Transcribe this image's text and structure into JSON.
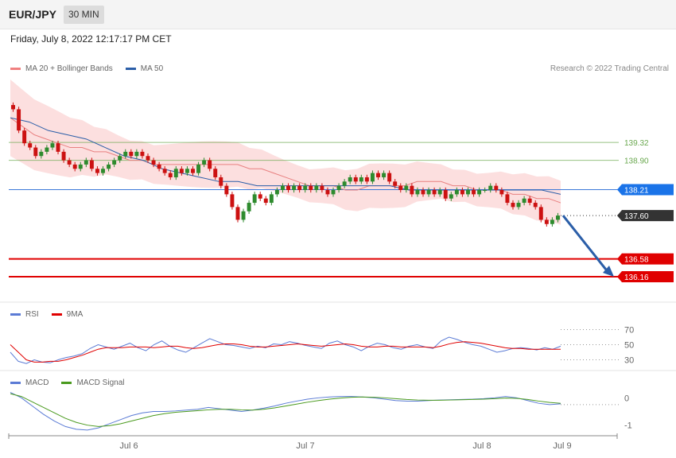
{
  "header": {
    "symbol": "EUR/JPY",
    "timeframe": "30 MIN"
  },
  "datetime": "Friday, July 8, 2022 12:17:17 PM CET",
  "credit": "Research © 2022 Trading Central",
  "legends": {
    "price": [
      {
        "label": "MA 20 + Bollinger Bands",
        "color": "#f08080"
      },
      {
        "label": "MA 50",
        "color": "#2b5ea8"
      }
    ],
    "rsi": [
      {
        "label": "RSI",
        "color": "#5b7bd5"
      },
      {
        "label": "9MA",
        "color": "#e00000"
      }
    ],
    "macd": [
      {
        "label": "MACD",
        "color": "#5b7bd5"
      },
      {
        "label": "MACD Signal",
        "color": "#4a9a1e"
      }
    ]
  },
  "chart_data": [
    {
      "type": "candlestick",
      "title": "EUR/JPY 30 MIN",
      "x_ticks": [
        "Jul 6",
        "Jul 7",
        "Jul 8",
        "Jul 9"
      ],
      "ylim": [
        135.6,
        140.8
      ],
      "last_price": 137.6,
      "levels": [
        {
          "value": 139.32,
          "label": "139.32",
          "color": "#6aa84f",
          "kind": "resistance"
        },
        {
          "value": 138.9,
          "label": "138.90",
          "color": "#6aa84f",
          "kind": "resistance"
        },
        {
          "value": 138.21,
          "label": "138.21",
          "color": "#3c78d8",
          "kind": "pivot"
        },
        {
          "value": 137.6,
          "label": "137.60",
          "color": "#333333",
          "kind": "last"
        },
        {
          "value": 136.58,
          "label": "136.58",
          "color": "#e00000",
          "kind": "support"
        },
        {
          "value": 136.16,
          "label": "136.16",
          "color": "#e00000",
          "kind": "support"
        }
      ],
      "close": [
        140.1,
        139.6,
        139.3,
        139.2,
        139.0,
        139.1,
        139.2,
        139.3,
        139.1,
        138.9,
        138.8,
        138.7,
        138.8,
        138.9,
        138.7,
        138.6,
        138.7,
        138.8,
        138.9,
        139.0,
        139.1,
        139.0,
        139.1,
        139.0,
        138.9,
        138.8,
        138.7,
        138.6,
        138.5,
        138.7,
        138.6,
        138.7,
        138.6,
        138.8,
        138.9,
        138.7,
        138.5,
        138.3,
        138.1,
        137.8,
        137.5,
        137.7,
        137.9,
        138.1,
        138.0,
        137.9,
        138.1,
        138.2,
        138.3,
        138.2,
        138.3,
        138.2,
        138.3,
        138.2,
        138.3,
        138.2,
        138.1,
        138.2,
        138.3,
        138.4,
        138.5,
        138.4,
        138.5,
        138.4,
        138.6,
        138.5,
        138.6,
        138.4,
        138.3,
        138.2,
        138.3,
        138.1,
        138.2,
        138.1,
        138.2,
        138.1,
        138.2,
        138.0,
        138.1,
        138.2,
        138.1,
        138.2,
        138.1,
        138.2,
        138.2,
        138.3,
        138.2,
        138.1,
        137.9,
        137.8,
        137.9,
        138.0,
        137.9,
        137.8,
        137.5,
        137.4,
        137.5,
        137.6
      ],
      "ma20": [
        139.9,
        139.7,
        139.5,
        139.4,
        139.3,
        139.2,
        139.2,
        139.1,
        139.1,
        139.0,
        138.9,
        138.9,
        138.8,
        138.8,
        138.8,
        138.8,
        138.8,
        138.8,
        138.8,
        138.8,
        138.7,
        138.7,
        138.6,
        138.5,
        138.4,
        138.3,
        138.3,
        138.3,
        138.2,
        138.2,
        138.3,
        138.3,
        138.3,
        138.3,
        138.4,
        138.4,
        138.4,
        138.3,
        138.3,
        138.2,
        138.2,
        138.2,
        138.1,
        138.1,
        138.0,
        138.0,
        137.9
      ],
      "ma50": [
        139.9,
        139.8,
        139.6,
        139.5,
        139.4,
        139.2,
        139.0,
        138.9,
        138.7,
        138.6,
        138.5,
        138.4,
        138.4,
        138.3,
        138.3,
        138.3,
        138.3,
        138.3,
        138.3,
        138.3,
        138.3,
        138.2,
        138.2,
        138.2,
        138.2,
        138.2,
        138.2,
        138.2,
        138.2,
        138.1
      ],
      "target_arrow": {
        "from": 137.6,
        "to": 136.16
      }
    },
    {
      "type": "line",
      "title": "RSI",
      "ylim": [
        20,
        80
      ],
      "y_ticks": [
        70,
        50,
        30
      ],
      "series": [
        {
          "name": "RSI",
          "color": "#5b7bd5",
          "values": [
            40,
            28,
            25,
            30,
            27,
            26,
            30,
            33,
            35,
            38,
            45,
            50,
            47,
            44,
            48,
            52,
            46,
            42,
            50,
            55,
            48,
            43,
            40,
            46,
            52,
            58,
            54,
            50,
            49,
            47,
            45,
            48,
            46,
            51,
            50,
            54,
            52,
            49,
            47,
            45,
            52,
            55,
            50,
            47,
            42,
            48,
            52,
            50,
            46,
            44,
            48,
            50,
            47,
            45,
            55,
            60,
            57,
            53,
            50,
            48,
            44,
            40,
            42,
            45,
            46,
            45,
            43,
            46,
            44,
            48
          ]
        },
        {
          "name": "9MA",
          "color": "#e00000",
          "values": [
            50,
            40,
            30,
            27,
            27,
            28,
            28,
            30,
            33,
            36,
            40,
            44,
            46,
            46,
            46,
            47,
            47,
            47,
            46,
            47,
            48,
            48,
            46,
            45,
            46,
            48,
            50,
            51,
            51,
            50,
            48,
            47,
            47,
            48,
            49,
            50,
            51,
            50,
            49,
            48,
            49,
            50,
            51,
            50,
            48,
            47,
            47,
            48,
            48,
            47,
            47,
            47,
            47,
            46,
            48,
            51,
            53,
            54,
            53,
            52,
            50,
            48,
            46,
            45,
            45,
            44,
            44,
            44,
            44,
            44
          ]
        }
      ]
    },
    {
      "type": "line",
      "title": "MACD",
      "ylim": [
        -1.3,
        0.3
      ],
      "y_ticks": [
        0,
        -1
      ],
      "series": [
        {
          "name": "MACD",
          "color": "#5b7bd5",
          "values": [
            0.2,
            0.0,
            -0.3,
            -0.6,
            -0.85,
            -1.05,
            -1.15,
            -1.18,
            -1.1,
            -0.95,
            -0.8,
            -0.65,
            -0.55,
            -0.5,
            -0.5,
            -0.48,
            -0.45,
            -0.42,
            -0.35,
            -0.4,
            -0.45,
            -0.5,
            -0.45,
            -0.38,
            -0.3,
            -0.2,
            -0.12,
            -0.05,
            0.0,
            0.03,
            0.05,
            0.05,
            0.03,
            0.0,
            -0.05,
            -0.1,
            -0.12,
            -0.12,
            -0.1,
            -0.08,
            -0.07,
            -0.06,
            -0.05,
            -0.03,
            0.0,
            0.05,
            0.0,
            -0.1,
            -0.2,
            -0.25,
            -0.22
          ]
        },
        {
          "name": "MACD Signal",
          "color": "#4a9a1e",
          "values": [
            0.15,
            0.05,
            -0.15,
            -0.35,
            -0.55,
            -0.75,
            -0.9,
            -1.0,
            -1.05,
            -1.02,
            -0.95,
            -0.85,
            -0.75,
            -0.65,
            -0.58,
            -0.53,
            -0.5,
            -0.47,
            -0.44,
            -0.42,
            -0.42,
            -0.44,
            -0.45,
            -0.42,
            -0.37,
            -0.3,
            -0.23,
            -0.16,
            -0.1,
            -0.05,
            -0.01,
            0.02,
            0.03,
            0.02,
            0.0,
            -0.03,
            -0.06,
            -0.08,
            -0.09,
            -0.09,
            -0.08,
            -0.07,
            -0.06,
            -0.05,
            -0.03,
            -0.01,
            -0.02,
            -0.06,
            -0.12,
            -0.17,
            -0.2
          ]
        }
      ]
    }
  ]
}
